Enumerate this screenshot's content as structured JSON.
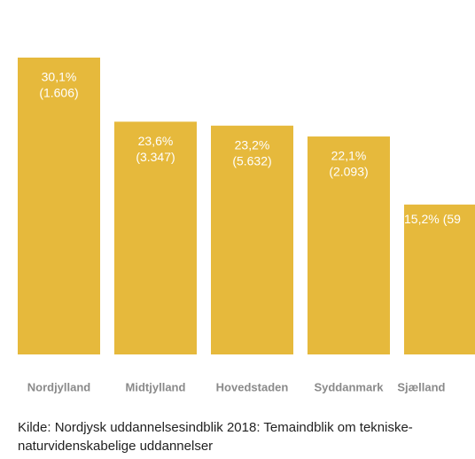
{
  "chart_data": {
    "type": "bar",
    "categories": [
      "Nordjylland",
      "Midtjylland",
      "Hovedstaden",
      "Syddanmark",
      "Sjælland"
    ],
    "values": [
      30.1,
      23.6,
      23.2,
      22.1,
      15.2
    ],
    "value_labels": [
      "30,1%",
      "23,6%",
      "23,2%",
      "22,1%",
      "15,2%"
    ],
    "count_labels": [
      "(1.606)",
      "(3.347)",
      "(5.632)",
      "(2.093)",
      "(59"
    ],
    "color": "#e6b93c",
    "source": "Kilde: Nordjysk uddannelsesindblik 2018: Temaindblik om tekniske-naturvidenskabelige uddannelser"
  }
}
